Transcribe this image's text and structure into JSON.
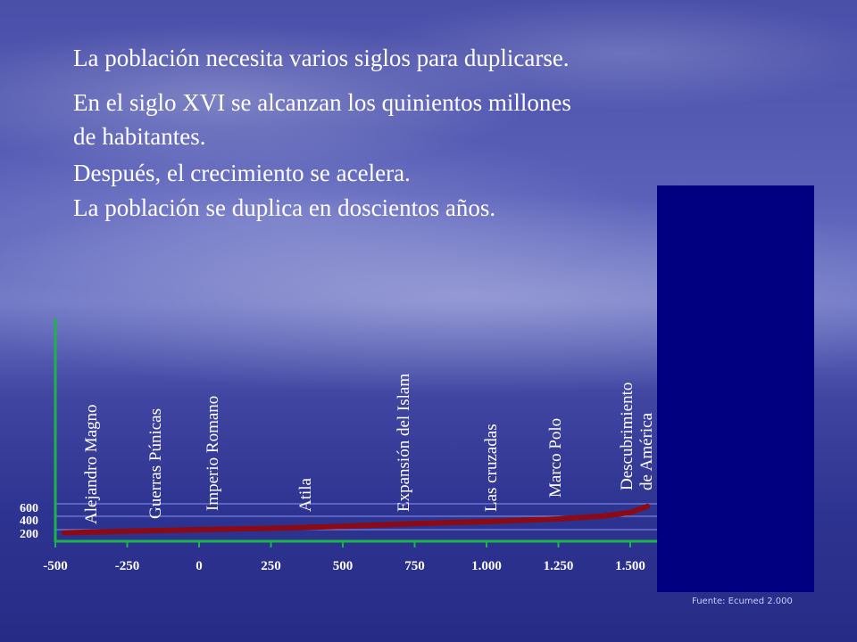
{
  "text": {
    "line1": "La población necesita varios siglos para duplicarse.",
    "line2a": "En el siglo XVI se alcanzan los quinientos millones",
    "line2b": "de habitantes.",
    "line3": "Después, el crecimiento se acelera.",
    "line4": "La población se duplica en doscientos años."
  },
  "source": "Fuente: Ecumed 2.000",
  "colors": {
    "axis": "#1db34a",
    "curve": "#8b0a14",
    "gridline": "#9aa4ff",
    "cover": "#000080",
    "text": "#ffffff"
  },
  "chart_data": {
    "type": "line",
    "title": "",
    "xlabel": "",
    "ylabel": "",
    "xlim": [
      -500,
      1560
    ],
    "ylim": [
      0,
      600
    ],
    "x_ticks": [
      {
        "value": -500,
        "label": "-500"
      },
      {
        "value": -250,
        "label": "-250"
      },
      {
        "value": 0,
        "label": "0"
      },
      {
        "value": 250,
        "label": "250"
      },
      {
        "value": 500,
        "label": "500"
      },
      {
        "value": 750,
        "label": "750"
      },
      {
        "value": 1000,
        "label": "1.000"
      },
      {
        "value": 1250,
        "label": "1.250"
      },
      {
        "value": 1500,
        "label": "1.500"
      }
    ],
    "y_ticks": [
      {
        "value": 200,
        "label": "200"
      },
      {
        "value": 400,
        "label": "400"
      },
      {
        "value": 600,
        "label": "600"
      }
    ],
    "grid": true,
    "series": [
      {
        "x": [
          -470,
          -250,
          0,
          250,
          500,
          750,
          1000,
          1250,
          1400,
          1500,
          1560
        ],
        "values": [
          100,
          150,
          200,
          220,
          250,
          290,
          320,
          360,
          400,
          460,
          560
        ]
      }
    ],
    "annotations": [
      {
        "x": -400,
        "label": "Alejandro Magno"
      },
      {
        "x": -150,
        "label": "Guerras Púnicas"
      },
      {
        "x": 50,
        "label": "Imperio Romano"
      },
      {
        "x": 400,
        "label": "Atila"
      },
      {
        "x": 730,
        "label": "Expansión del Islam"
      },
      {
        "x": 1030,
        "label": "Las cruzadas"
      },
      {
        "x": 1270,
        "label": "Marco Polo"
      },
      {
        "x": 1500,
        "label": "Descubrimiento",
        "label2": "de América"
      }
    ]
  }
}
